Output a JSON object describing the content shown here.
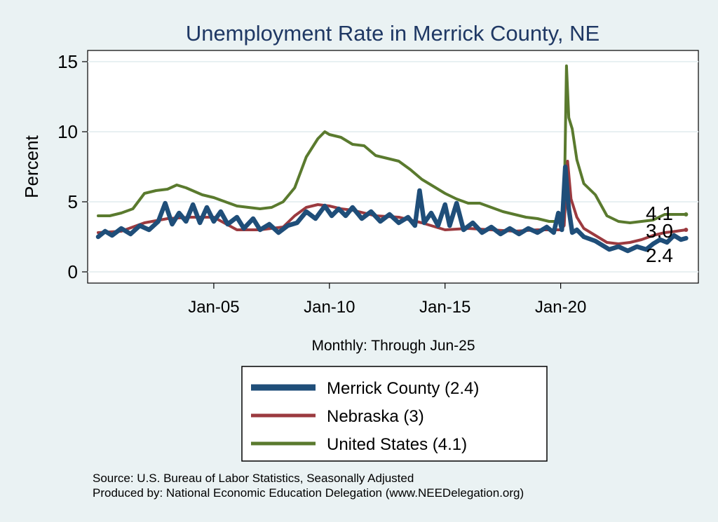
{
  "chart_data": {
    "type": "line",
    "title": "Unemployment Rate in Merrick  County, NE",
    "ylabel": "Percent",
    "xlabel": "Monthly: Through Jun-25",
    "ylim": [
      0,
      15
    ],
    "yticks": [
      "0",
      "5",
      "10",
      "15"
    ],
    "xticks": [
      {
        "label": "Jan-05",
        "x": 2005.0
      },
      {
        "label": "Jan-10",
        "x": 2010.0
      },
      {
        "label": "Jan-15",
        "x": 2015.0
      },
      {
        "label": "Jan-20",
        "x": 2020.0
      }
    ],
    "xlim": [
      2000.0,
      2025.5
    ],
    "grid": "horizontal",
    "legend_position": "bottom",
    "series": [
      {
        "name": "United States",
        "legend_label": "United States (4.1)",
        "end_label": "4.1",
        "color": "#5a7a2e",
        "points": [
          [
            2000.0,
            4.0
          ],
          [
            2000.5,
            4.0
          ],
          [
            2001.0,
            4.2
          ],
          [
            2001.5,
            4.5
          ],
          [
            2002.0,
            5.6
          ],
          [
            2002.5,
            5.8
          ],
          [
            2003.0,
            5.9
          ],
          [
            2003.4,
            6.2
          ],
          [
            2003.8,
            6.0
          ],
          [
            2004.5,
            5.5
          ],
          [
            2005.0,
            5.3
          ],
          [
            2005.5,
            5.0
          ],
          [
            2006.0,
            4.7
          ],
          [
            2006.5,
            4.6
          ],
          [
            2007.0,
            4.5
          ],
          [
            2007.5,
            4.6
          ],
          [
            2008.0,
            5.0
          ],
          [
            2008.5,
            6.0
          ],
          [
            2009.0,
            8.2
          ],
          [
            2009.5,
            9.5
          ],
          [
            2009.8,
            10.0
          ],
          [
            2010.0,
            9.8
          ],
          [
            2010.5,
            9.6
          ],
          [
            2011.0,
            9.1
          ],
          [
            2011.5,
            9.0
          ],
          [
            2012.0,
            8.3
          ],
          [
            2012.5,
            8.1
          ],
          [
            2013.0,
            7.9
          ],
          [
            2013.5,
            7.3
          ],
          [
            2014.0,
            6.6
          ],
          [
            2014.5,
            6.1
          ],
          [
            2015.0,
            5.6
          ],
          [
            2015.5,
            5.2
          ],
          [
            2016.0,
            4.9
          ],
          [
            2016.5,
            4.9
          ],
          [
            2017.0,
            4.6
          ],
          [
            2017.5,
            4.3
          ],
          [
            2018.0,
            4.1
          ],
          [
            2018.5,
            3.9
          ],
          [
            2019.0,
            3.8
          ],
          [
            2019.5,
            3.6
          ],
          [
            2020.0,
            3.6
          ],
          [
            2020.15,
            4.4
          ],
          [
            2020.25,
            14.7
          ],
          [
            2020.35,
            11.0
          ],
          [
            2020.5,
            10.2
          ],
          [
            2020.7,
            8.0
          ],
          [
            2021.0,
            6.3
          ],
          [
            2021.5,
            5.5
          ],
          [
            2022.0,
            4.0
          ],
          [
            2022.5,
            3.6
          ],
          [
            2023.0,
            3.5
          ],
          [
            2023.5,
            3.6
          ],
          [
            2024.0,
            3.7
          ],
          [
            2024.5,
            4.1
          ],
          [
            2025.0,
            4.1
          ],
          [
            2025.42,
            4.1
          ]
        ]
      },
      {
        "name": "Nebraska",
        "legend_label": "Nebraska (3)",
        "end_label": "3.0",
        "color": "#9b3a3f",
        "points": [
          [
            2000.0,
            2.8
          ],
          [
            2001.0,
            2.9
          ],
          [
            2002.0,
            3.5
          ],
          [
            2003.0,
            3.8
          ],
          [
            2004.0,
            3.9
          ],
          [
            2005.0,
            3.9
          ],
          [
            2006.0,
            3.0
          ],
          [
            2007.0,
            3.0
          ],
          [
            2008.0,
            3.2
          ],
          [
            2008.5,
            4.0
          ],
          [
            2009.0,
            4.6
          ],
          [
            2009.5,
            4.8
          ],
          [
            2010.0,
            4.7
          ],
          [
            2010.5,
            4.5
          ],
          [
            2011.0,
            4.4
          ],
          [
            2012.0,
            4.0
          ],
          [
            2013.0,
            3.9
          ],
          [
            2014.0,
            3.5
          ],
          [
            2015.0,
            3.0
          ],
          [
            2016.0,
            3.1
          ],
          [
            2017.0,
            3.0
          ],
          [
            2018.0,
            2.9
          ],
          [
            2019.0,
            3.0
          ],
          [
            2020.0,
            3.0
          ],
          [
            2020.15,
            3.3
          ],
          [
            2020.3,
            7.9
          ],
          [
            2020.45,
            5.2
          ],
          [
            2020.7,
            3.9
          ],
          [
            2021.0,
            3.1
          ],
          [
            2021.5,
            2.6
          ],
          [
            2022.0,
            2.1
          ],
          [
            2022.5,
            2.0
          ],
          [
            2023.0,
            2.1
          ],
          [
            2023.5,
            2.3
          ],
          [
            2024.0,
            2.6
          ],
          [
            2024.5,
            2.8
          ],
          [
            2025.0,
            2.9
          ],
          [
            2025.42,
            3.0
          ]
        ]
      },
      {
        "name": "Merrick  County",
        "legend_label": "Merrick  County (2.4)",
        "end_label": "2.4",
        "color": "#1f4e79",
        "points": [
          [
            2000.0,
            2.5
          ],
          [
            2000.3,
            2.9
          ],
          [
            2000.6,
            2.6
          ],
          [
            2001.0,
            3.1
          ],
          [
            2001.4,
            2.7
          ],
          [
            2001.8,
            3.3
          ],
          [
            2002.2,
            3.0
          ],
          [
            2002.6,
            3.6
          ],
          [
            2002.9,
            4.9
          ],
          [
            2003.2,
            3.4
          ],
          [
            2003.5,
            4.2
          ],
          [
            2003.8,
            3.6
          ],
          [
            2004.1,
            4.8
          ],
          [
            2004.4,
            3.5
          ],
          [
            2004.7,
            4.6
          ],
          [
            2005.0,
            3.6
          ],
          [
            2005.3,
            4.3
          ],
          [
            2005.6,
            3.4
          ],
          [
            2006.0,
            3.9
          ],
          [
            2006.3,
            3.1
          ],
          [
            2006.7,
            3.8
          ],
          [
            2007.0,
            3.0
          ],
          [
            2007.4,
            3.4
          ],
          [
            2007.8,
            2.8
          ],
          [
            2008.2,
            3.3
          ],
          [
            2008.6,
            3.5
          ],
          [
            2009.0,
            4.3
          ],
          [
            2009.4,
            3.8
          ],
          [
            2009.8,
            4.7
          ],
          [
            2010.1,
            4.0
          ],
          [
            2010.4,
            4.5
          ],
          [
            2010.7,
            4.0
          ],
          [
            2011.0,
            4.6
          ],
          [
            2011.4,
            3.8
          ],
          [
            2011.8,
            4.3
          ],
          [
            2012.2,
            3.6
          ],
          [
            2012.6,
            4.1
          ],
          [
            2013.0,
            3.5
          ],
          [
            2013.4,
            3.9
          ],
          [
            2013.7,
            3.3
          ],
          [
            2013.9,
            5.8
          ],
          [
            2014.1,
            3.5
          ],
          [
            2014.4,
            4.2
          ],
          [
            2014.7,
            3.3
          ],
          [
            2015.0,
            4.8
          ],
          [
            2015.2,
            3.3
          ],
          [
            2015.5,
            4.9
          ],
          [
            2015.8,
            3.0
          ],
          [
            2016.2,
            3.5
          ],
          [
            2016.6,
            2.8
          ],
          [
            2017.0,
            3.2
          ],
          [
            2017.4,
            2.7
          ],
          [
            2017.8,
            3.1
          ],
          [
            2018.2,
            2.7
          ],
          [
            2018.6,
            3.1
          ],
          [
            2019.0,
            2.8
          ],
          [
            2019.4,
            3.2
          ],
          [
            2019.7,
            2.8
          ],
          [
            2019.9,
            4.2
          ],
          [
            2020.05,
            3.0
          ],
          [
            2020.2,
            7.5
          ],
          [
            2020.35,
            4.5
          ],
          [
            2020.5,
            2.8
          ],
          [
            2020.7,
            3.0
          ],
          [
            2021.0,
            2.5
          ],
          [
            2021.5,
            2.2
          ],
          [
            2021.8,
            1.9
          ],
          [
            2022.1,
            1.6
          ],
          [
            2022.5,
            1.8
          ],
          [
            2022.9,
            1.5
          ],
          [
            2023.3,
            1.8
          ],
          [
            2023.7,
            1.6
          ],
          [
            2024.0,
            2.0
          ],
          [
            2024.3,
            2.3
          ],
          [
            2024.6,
            2.1
          ],
          [
            2024.9,
            2.6
          ],
          [
            2025.2,
            2.3
          ],
          [
            2025.42,
            2.4
          ]
        ]
      }
    ],
    "legend_order": [
      "Merrick  County",
      "Nebraska",
      "United States"
    ]
  },
  "source": {
    "line1": "Source: U.S. Bureau of Labor Statistics, Seasonally Adjusted",
    "line2": "Produced by: National Economic Education Delegation (www.NEEDelegation.org)"
  }
}
